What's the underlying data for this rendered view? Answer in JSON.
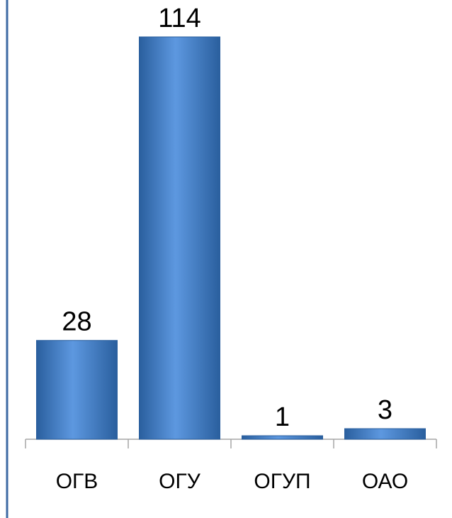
{
  "chart_data": {
    "type": "bar",
    "categories": [
      "ОГВ",
      "ОГУ",
      "ОГУП",
      "ОАО"
    ],
    "values": [
      28,
      114,
      1,
      3
    ],
    "title": "",
    "xlabel": "",
    "ylabel": "",
    "ylim": [
      0,
      114
    ],
    "grid": false,
    "legend": "none",
    "data_labels": true,
    "colors": {
      "bar_fill": "#3f7dcc",
      "bar_light": "#5d98e0",
      "bar_dark": "#2a5f9e",
      "axis": "#a6a6a6",
      "frame": "#3e6aa3"
    }
  }
}
